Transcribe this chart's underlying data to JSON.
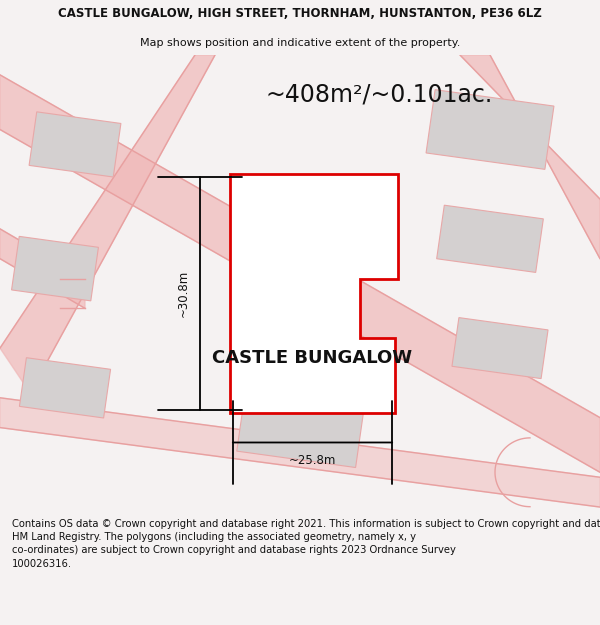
{
  "title_line1": "CASTLE BUNGALOW, HIGH STREET, THORNHAM, HUNSTANTON, PE36 6LZ",
  "title_line2": "Map shows position and indicative extent of the property.",
  "area_text": "~408m²/~0.101ac.",
  "property_label": "CASTLE BUNGALOW",
  "dim_width": "~25.8m",
  "dim_height": "~30.8m",
  "footer_text": "Contains OS data © Crown copyright and database right 2021. This information is subject to Crown copyright and database rights 2023 and is reproduced with the permission of\nHM Land Registry. The polygons (including the associated geometry, namely x, y\nco-ordinates) are subject to Crown copyright and database rights 2023 Ordnance Survey\n100026316.",
  "bg_color": "#f5f2f2",
  "map_bg": "#ffffff",
  "property_fill": "#ffffff",
  "property_edge": "#dd0000",
  "building_fill": "#d4d0d0",
  "building_edge": "#e8a8a8",
  "road_color": "#f0b8b8",
  "road_outline": "#e8a0a0",
  "title_fontsize": 8.5,
  "subtitle_fontsize": 8.0,
  "area_fontsize": 17,
  "label_fontsize": 13,
  "footer_fontsize": 7.2
}
